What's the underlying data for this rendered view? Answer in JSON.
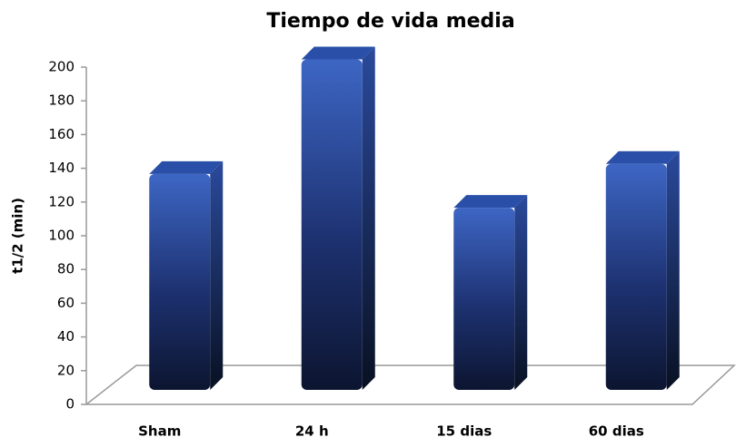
{
  "chart_data": {
    "type": "bar3d",
    "title": "Tiempo de vida media",
    "y_label": "t1/2 (min)",
    "categories": [
      "Sham",
      "24 h",
      "15 dias",
      "60 dias"
    ],
    "values": [
      128,
      196,
      108,
      134
    ],
    "color": "#2a4fa8",
    "ylim": [
      0,
      200
    ],
    "yticks": [
      0,
      20,
      40,
      60,
      80,
      100,
      120,
      140,
      160,
      180,
      200
    ]
  }
}
